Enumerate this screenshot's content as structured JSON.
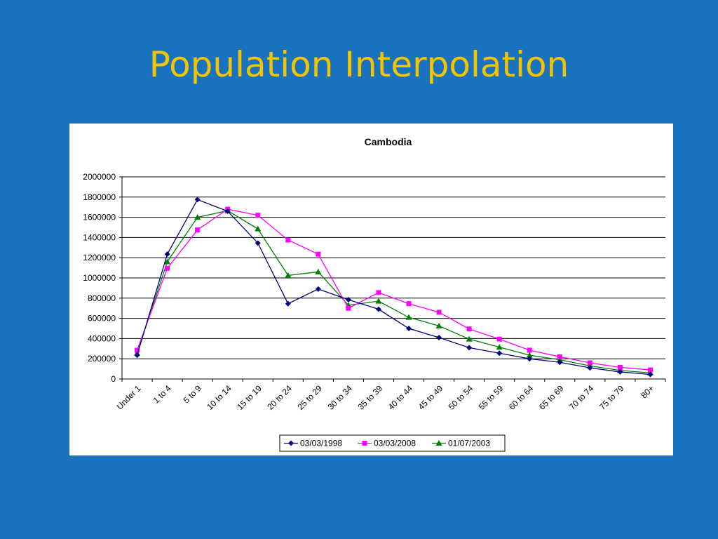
{
  "slide": {
    "title": "Population Interpolation"
  },
  "chart_data": {
    "type": "line",
    "title": "Cambodia",
    "xlabel": "",
    "ylabel": "",
    "ylim": [
      0,
      2000000
    ],
    "yticks": [
      0,
      200000,
      400000,
      600000,
      800000,
      1000000,
      1200000,
      1400000,
      1600000,
      1800000,
      2000000
    ],
    "grid": true,
    "legend_position": "bottom",
    "categories": [
      "Under 1",
      "1 to 4",
      "5 to 9",
      "10 to 14",
      "15 to 19",
      "20 to 24",
      "25 to 29",
      "30 to 34",
      "35 to 39",
      "40 to 44",
      "45 to 49",
      "50 to 54",
      "55 to 59",
      "60 to 64",
      "65 to 69",
      "70 to 74",
      "75 to 79",
      "80+"
    ],
    "series": [
      {
        "name": "03/03/1998",
        "color": "#000080",
        "marker": "diamond",
        "values": [
          235000,
          1235000,
          1775000,
          1660000,
          1345000,
          745000,
          890000,
          785000,
          690000,
          500000,
          410000,
          310000,
          255000,
          200000,
          165000,
          110000,
          70000,
          45000
        ]
      },
      {
        "name": "03/03/2008",
        "color": "#ff00ff",
        "marker": "square",
        "values": [
          285000,
          1095000,
          1475000,
          1680000,
          1620000,
          1375000,
          1235000,
          700000,
          855000,
          745000,
          660000,
          495000,
          395000,
          285000,
          220000,
          160000,
          115000,
          90000
        ]
      },
      {
        "name": "01/07/2003",
        "color": "#008000",
        "marker": "triangle",
        "values": [
          255000,
          1160000,
          1600000,
          1665000,
          1485000,
          1025000,
          1060000,
          730000,
          770000,
          610000,
          525000,
          395000,
          315000,
          235000,
          190000,
          130000,
          85000,
          60000
        ]
      }
    ]
  }
}
